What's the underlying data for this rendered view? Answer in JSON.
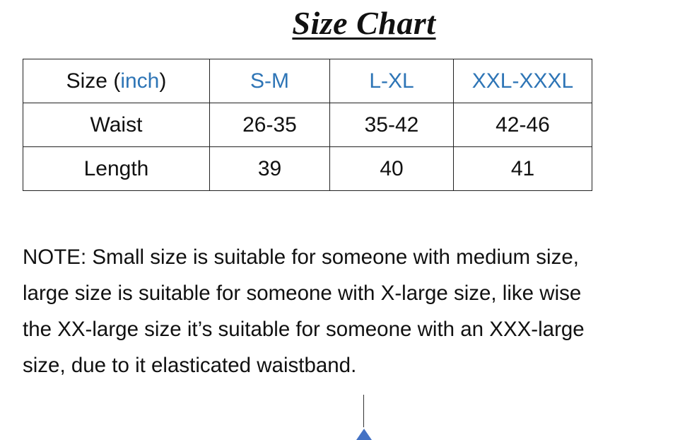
{
  "title": "Size Chart",
  "table": {
    "header": {
      "label": "Size (",
      "unit": "inch",
      "label_close": ")",
      "sizes": [
        "S-M",
        "L-XL",
        "XXL-XXXL"
      ]
    },
    "rows": [
      {
        "label": "Waist",
        "values": [
          "26-35",
          "35-42",
          "42-46"
        ]
      },
      {
        "label": "Length",
        "values": [
          "39",
          "40",
          "41"
        ]
      }
    ]
  },
  "note_lines": [
    "NOTE: Small size is suitable for someone with medium size,",
    "large size is suitable for someone with X-large size, like wise",
    "the XX-large size it’s suitable for someone with an XXX-large",
    "size,  due to it elasticated waistband."
  ],
  "colors": {
    "accent": "#2e75b6",
    "arrow": "#4472c4"
  }
}
